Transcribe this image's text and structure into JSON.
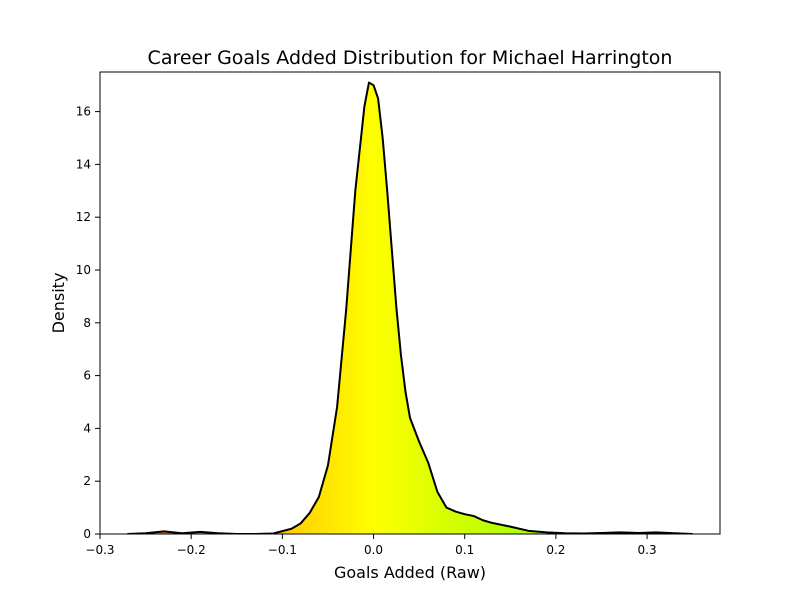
{
  "chart_data": {
    "type": "area",
    "title": "Career Goals Added Distribution for Michael Harrington",
    "xlabel": "Goals Added (Raw)",
    "ylabel": "Density",
    "xlim": [
      -0.3,
      0.38
    ],
    "ylim": [
      0,
      17.5
    ],
    "x_ticks": [
      -0.3,
      -0.2,
      -0.1,
      0.0,
      0.1,
      0.2,
      0.3
    ],
    "x_tick_labels": [
      "−0.3",
      "−0.2",
      "−0.1",
      "0.0",
      "0.1",
      "0.2",
      "0.3"
    ],
    "y_ticks": [
      0,
      2,
      4,
      6,
      8,
      10,
      12,
      14,
      16
    ],
    "y_tick_labels": [
      "0",
      "2",
      "4",
      "6",
      "8",
      "10",
      "12",
      "14",
      "16"
    ],
    "grid": false,
    "line_color": "#000000",
    "fill_gradient": {
      "low": "#ff0000",
      "mid": "#ffff00",
      "high": "#00ff00",
      "domain": [
        -0.5,
        0.5
      ]
    },
    "series": [
      {
        "x": [
          -0.27,
          -0.25,
          -0.23,
          -0.21,
          -0.19,
          -0.17,
          -0.15,
          -0.13,
          -0.11,
          -0.09,
          -0.08,
          -0.07,
          -0.06,
          -0.05,
          -0.04,
          -0.03,
          -0.02,
          -0.01,
          -0.005,
          0.0,
          0.005,
          0.01,
          0.015,
          0.02,
          0.025,
          0.03,
          0.035,
          0.04,
          0.05,
          0.06,
          0.07,
          0.08,
          0.09,
          0.1,
          0.11,
          0.12,
          0.13,
          0.15,
          0.17,
          0.19,
          0.21,
          0.23,
          0.25,
          0.27,
          0.29,
          0.31,
          0.33,
          0.35
        ],
        "y": [
          0.0,
          0.03,
          0.1,
          0.03,
          0.08,
          0.03,
          0.0,
          0.0,
          0.02,
          0.2,
          0.4,
          0.8,
          1.4,
          2.6,
          4.8,
          8.5,
          13.0,
          16.2,
          17.1,
          17.0,
          16.5,
          15.0,
          13.0,
          10.8,
          8.6,
          6.8,
          5.4,
          4.4,
          3.5,
          2.7,
          1.6,
          1.0,
          0.85,
          0.75,
          0.68,
          0.52,
          0.42,
          0.28,
          0.12,
          0.06,
          0.03,
          0.02,
          0.04,
          0.06,
          0.04,
          0.06,
          0.03,
          0.0
        ]
      }
    ]
  }
}
